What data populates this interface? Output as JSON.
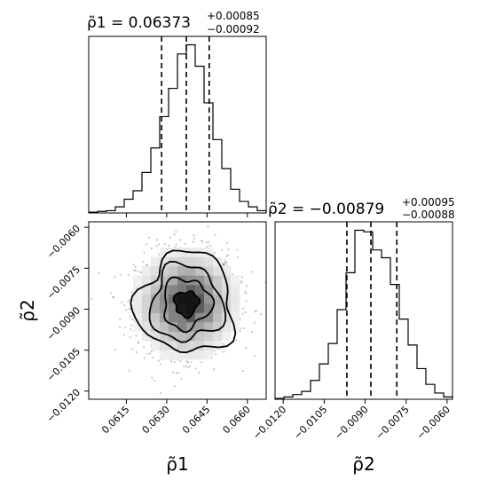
{
  "chart_data": {
    "type": "corner",
    "parameters": [
      {
        "label": "ρ̃1",
        "title_prefix": "ρ̃1 = ",
        "median": "0.06373",
        "err_plus": "+0.00085",
        "err_minus": "−0.00092",
        "quantiles": [
          0.06281,
          0.06373,
          0.06458
        ],
        "range": [
          0.0601,
          0.0667
        ],
        "ticks": [
          0.0615,
          0.063,
          0.0645,
          0.066
        ],
        "tick_labels": [
          "0.0615",
          "0.0630",
          "0.0645",
          "0.0660"
        ],
        "hist_edges_min": 0.0601,
        "hist_bin_width": 0.00033,
        "hist_counts": [
          1,
          2,
          3,
          8,
          18,
          29,
          53,
          85,
          126,
          163,
          208,
          220,
          192,
          144,
          96,
          58,
          31,
          15,
          8,
          3
        ]
      },
      {
        "label": "ρ̃2",
        "title_prefix": "ρ̃2 = ",
        "median": "−0.00879",
        "err_plus": "+0.00095",
        "err_minus": "−0.00088",
        "quantiles": [
          -0.00967,
          -0.00879,
          -0.00784
        ],
        "range": [
          -0.0123,
          -0.0058
        ],
        "ticks": [
          -0.012,
          -0.0105,
          -0.009,
          -0.0075,
          -0.006
        ],
        "tick_labels": [
          "−0.0120",
          "−0.0105",
          "−0.0090",
          "−0.0075",
          "−0.0060"
        ],
        "hist_edges_min": -0.0123,
        "hist_bin_width": 0.000325,
        "hist_counts": [
          1,
          3,
          6,
          10,
          24,
          45,
          71,
          114,
          161,
          215,
          213,
          190,
          180,
          146,
          102,
          69,
          39,
          19,
          8,
          3
        ]
      }
    ],
    "joint": {
      "center": [
        0.06373,
        -0.00879
      ],
      "sigma": [
        0.00089,
        0.00092
      ],
      "contour_levels": [
        "0.5σ",
        "1σ",
        "1.5σ",
        "2σ"
      ]
    }
  }
}
